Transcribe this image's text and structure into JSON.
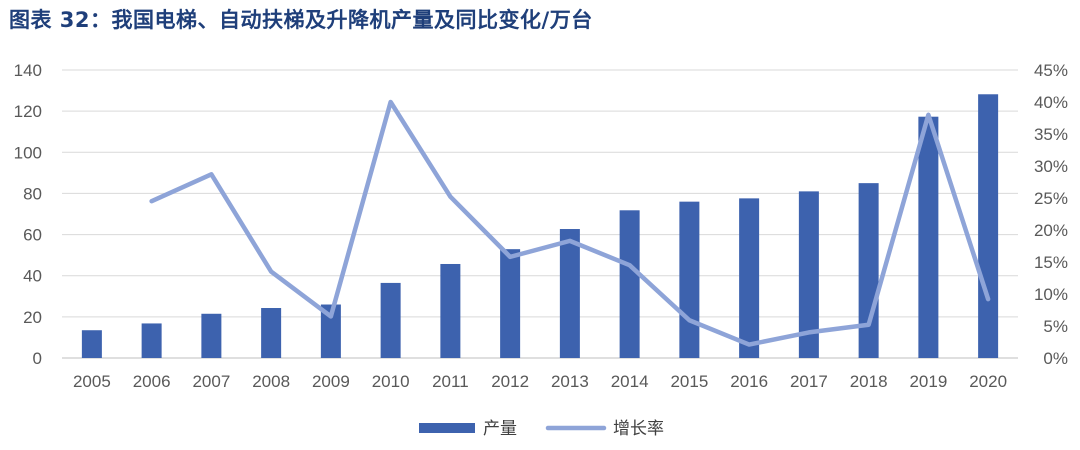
{
  "header": {
    "title": "图表 32：我国电梯、自动扶梯及升降机产量及同比变化/万台"
  },
  "colors": {
    "title": "#1f3f7a",
    "bar": "#3d62ae",
    "line": "#8ea4d8",
    "grid": "#d9d9d9",
    "axis_text": "#595959"
  },
  "chart_data": {
    "type": "bar",
    "categories": [
      "2005",
      "2006",
      "2007",
      "2008",
      "2009",
      "2010",
      "2011",
      "2012",
      "2013",
      "2014",
      "2015",
      "2016",
      "2017",
      "2018",
      "2019",
      "2020"
    ],
    "series": [
      {
        "name": "产量",
        "type": "bar",
        "axis": "left",
        "values": [
          13.5,
          16.8,
          21.5,
          24.3,
          26.0,
          36.5,
          45.7,
          52.9,
          62.7,
          71.8,
          76.0,
          77.6,
          81.0,
          85.0,
          117.3,
          128.2
        ]
      },
      {
        "name": "增长率",
        "type": "line",
        "axis": "right",
        "values": [
          null,
          24.5,
          28.7,
          13.5,
          6.5,
          40.0,
          25.2,
          15.8,
          18.3,
          14.5,
          5.9,
          2.1,
          4.0,
          5.2,
          38.0,
          9.2
        ]
      }
    ],
    "ylim_left": [
      0,
      140
    ],
    "yticks_left": [
      0,
      20,
      40,
      60,
      80,
      100,
      120,
      140
    ],
    "ylim_right": [
      0,
      45
    ],
    "yticks_right": [
      "0%",
      "5%",
      "10%",
      "15%",
      "20%",
      "25%",
      "30%",
      "35%",
      "40%",
      "45%"
    ],
    "grid": true,
    "legend_position": "bottom-center"
  }
}
